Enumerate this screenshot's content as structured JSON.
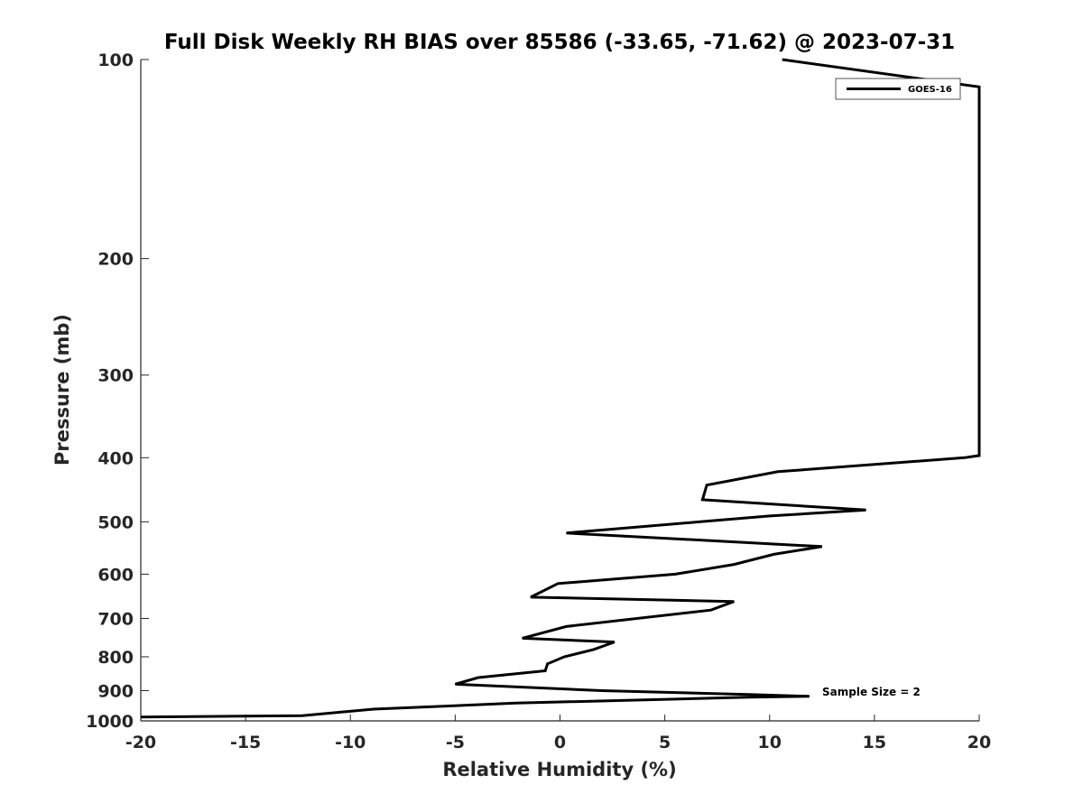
{
  "chart_data": {
    "type": "line",
    "title": "Full Disk Weekly RH BIAS over 85586 (-33.65, -71.62) @ 2023-07-31",
    "xlabel": "Relative Humidity (%)",
    "ylabel": "Pressure (mb)",
    "xlim": [
      -20,
      20
    ],
    "ylim": [
      1000,
      100
    ],
    "yscale": "log",
    "y_reversed": true,
    "x_ticks": [
      -20,
      -15,
      -10,
      -5,
      0,
      5,
      10,
      15,
      20
    ],
    "y_ticks": [
      100,
      200,
      300,
      400,
      500,
      600,
      700,
      800,
      900,
      1000
    ],
    "grid": false,
    "legend": {
      "placement": "top-right",
      "entries": [
        "GOES-16"
      ]
    },
    "annotation": "Sample Size = 2",
    "series": [
      {
        "name": "GOES-16",
        "color": "#000000",
        "points": [
          {
            "x": 10.6,
            "p": 100
          },
          {
            "x": 20.0,
            "p": 110
          },
          {
            "x": 20.0,
            "p": 397
          },
          {
            "x": 19.3,
            "p": 400
          },
          {
            "x": 10.4,
            "p": 420
          },
          {
            "x": 7.0,
            "p": 440
          },
          {
            "x": 6.8,
            "p": 463
          },
          {
            "x": 14.6,
            "p": 480
          },
          {
            "x": 10.0,
            "p": 490
          },
          {
            "x": 6.7,
            "p": 500
          },
          {
            "x": 0.3,
            "p": 520
          },
          {
            "x": 12.5,
            "p": 545
          },
          {
            "x": 10.2,
            "p": 560
          },
          {
            "x": 8.3,
            "p": 580
          },
          {
            "x": 5.5,
            "p": 600
          },
          {
            "x": -0.1,
            "p": 620
          },
          {
            "x": -1.4,
            "p": 650
          },
          {
            "x": 8.3,
            "p": 660
          },
          {
            "x": 7.2,
            "p": 680
          },
          {
            "x": 0.3,
            "p": 720
          },
          {
            "x": -1.8,
            "p": 750
          },
          {
            "x": 2.6,
            "p": 760
          },
          {
            "x": 1.6,
            "p": 780
          },
          {
            "x": 0.2,
            "p": 800
          },
          {
            "x": -0.6,
            "p": 820
          },
          {
            "x": -0.7,
            "p": 840
          },
          {
            "x": -3.9,
            "p": 860
          },
          {
            "x": -5.0,
            "p": 880
          },
          {
            "x": 2.0,
            "p": 900
          },
          {
            "x": 9.0,
            "p": 912
          },
          {
            "x": 11.9,
            "p": 918
          },
          {
            "x": 9.0,
            "p": 921
          },
          {
            "x": -2.1,
            "p": 940
          },
          {
            "x": -8.9,
            "p": 960
          },
          {
            "x": -12.3,
            "p": 982
          },
          {
            "x": -20.0,
            "p": 987
          }
        ]
      }
    ]
  }
}
